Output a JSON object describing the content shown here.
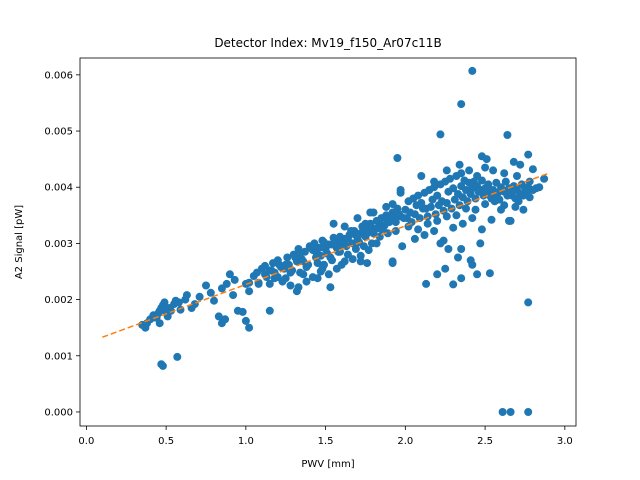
{
  "chart_data": {
    "type": "scatter",
    "title": "Detector Index: Mv19_f150_Ar07c11B",
    "xlabel": "PWV [mm]",
    "ylabel": "A2 Signal [pW]",
    "xlim": [
      -0.04,
      3.07
    ],
    "ylim": [
      -0.00025,
      0.0063
    ],
    "xticks": [
      0.0,
      0.5,
      1.0,
      1.5,
      2.0,
      2.5,
      3.0
    ],
    "xtick_labels": [
      "0.0",
      "0.5",
      "1.0",
      "1.5",
      "2.0",
      "2.5",
      "3.0"
    ],
    "yticks": [
      0.0,
      0.001,
      0.002,
      0.003,
      0.004,
      0.005,
      0.006
    ],
    "ytick_labels": [
      "0.000",
      "0.001",
      "0.002",
      "0.003",
      "0.004",
      "0.005",
      "0.006"
    ],
    "grid": false,
    "point_color": "#1f77b4",
    "fit_color": "#ff7f0e",
    "fit_line": {
      "style": "dashed",
      "x": [
        0.1,
        2.9
      ],
      "y": [
        0.00133,
        0.00425
      ]
    },
    "points": [
      [
        0.35,
        0.00155
      ],
      [
        0.37,
        0.0015
      ],
      [
        0.38,
        0.00158
      ],
      [
        0.4,
        0.00165
      ],
      [
        0.42,
        0.00172
      ],
      [
        0.44,
        0.00168
      ],
      [
        0.45,
        0.00175
      ],
      [
        0.46,
        0.0018
      ],
      [
        0.47,
        0.00185
      ],
      [
        0.48,
        0.0019
      ],
      [
        0.49,
        0.00195
      ],
      [
        0.5,
        0.00178
      ],
      [
        0.51,
        0.0017
      ],
      [
        0.52,
        0.00185
      ],
      [
        0.53,
        0.0018
      ],
      [
        0.55,
        0.00192
      ],
      [
        0.56,
        0.00198
      ],
      [
        0.58,
        0.00195
      ],
      [
        0.59,
        0.00182
      ],
      [
        0.62,
        0.002
      ],
      [
        0.63,
        0.00208
      ],
      [
        0.66,
        0.00185
      ],
      [
        0.68,
        0.00192
      ],
      [
        0.71,
        0.00205
      ],
      [
        0.47,
        0.00085
      ],
      [
        0.48,
        0.00082
      ],
      [
        0.57,
        0.00098
      ],
      [
        0.43,
        0.00168
      ],
      [
        0.46,
        0.00158
      ],
      [
        0.75,
        0.00225
      ],
      [
        0.78,
        0.00212
      ],
      [
        0.8,
        0.00198
      ],
      [
        0.83,
        0.0017
      ],
      [
        0.85,
        0.00158
      ],
      [
        0.87,
        0.00165
      ],
      [
        0.9,
        0.00245
      ],
      [
        0.92,
        0.00208
      ],
      [
        0.95,
        0.0018
      ],
      [
        0.98,
        0.00178
      ],
      [
        1.0,
        0.00162
      ],
      [
        1.02,
        0.0015
      ],
      [
        0.85,
        0.0022
      ],
      [
        0.88,
        0.00228
      ],
      [
        0.93,
        0.00235
      ],
      [
        1.0,
        0.00228
      ],
      [
        1.02,
        0.00215
      ],
      [
        1.05,
        0.00242
      ],
      [
        1.07,
        0.00248
      ],
      [
        1.08,
        0.0023
      ],
      [
        1.1,
        0.00255
      ],
      [
        1.12,
        0.0026
      ],
      [
        1.13,
        0.0024
      ],
      [
        1.15,
        0.00252
      ],
      [
        1.17,
        0.00265
      ],
      [
        1.18,
        0.00238
      ],
      [
        1.2,
        0.0027
      ],
      [
        1.22,
        0.00258
      ],
      [
        1.23,
        0.00232
      ],
      [
        1.25,
        0.00262
      ],
      [
        1.26,
        0.00275
      ],
      [
        1.28,
        0.00248
      ],
      [
        1.3,
        0.0028
      ],
      [
        1.32,
        0.00268
      ],
      [
        1.33,
        0.0029
      ],
      [
        1.35,
        0.00272
      ],
      [
        1.37,
        0.00285
      ],
      [
        1.38,
        0.00258
      ],
      [
        1.4,
        0.00295
      ],
      [
        1.42,
        0.00288
      ],
      [
        1.43,
        0.003
      ],
      [
        1.45,
        0.00265
      ],
      [
        1.47,
        0.00278
      ],
      [
        1.48,
        0.00305
      ],
      [
        1.5,
        0.0029
      ],
      [
        1.52,
        0.00298
      ],
      [
        1.53,
        0.00275
      ],
      [
        1.55,
        0.0031
      ],
      [
        1.57,
        0.00292
      ],
      [
        1.58,
        0.00285
      ],
      [
        1.6,
        0.00302
      ],
      [
        1.62,
        0.00308
      ],
      [
        1.63,
        0.00295
      ],
      [
        1.65,
        0.00315
      ],
      [
        1.67,
        0.003
      ],
      [
        1.68,
        0.00322
      ],
      [
        1.7,
        0.0031
      ],
      [
        1.72,
        0.00318
      ],
      [
        1.73,
        0.0033
      ],
      [
        1.75,
        0.00312
      ],
      [
        1.77,
        0.00325
      ],
      [
        1.78,
        0.00335
      ],
      [
        1.8,
        0.00318
      ],
      [
        1.82,
        0.0034
      ],
      [
        1.83,
        0.00328
      ],
      [
        1.85,
        0.00345
      ],
      [
        1.87,
        0.00332
      ],
      [
        1.88,
        0.0035
      ],
      [
        1.9,
        0.00338
      ],
      [
        1.92,
        0.00355
      ],
      [
        1.93,
        0.00342
      ],
      [
        1.95,
        0.00362
      ],
      [
        1.97,
        0.00348
      ],
      [
        1.08,
        0.00228
      ],
      [
        1.12,
        0.00245
      ],
      [
        1.16,
        0.00252
      ],
      [
        1.21,
        0.00262
      ],
      [
        1.24,
        0.00255
      ],
      [
        1.27,
        0.00262
      ],
      [
        1.31,
        0.00275
      ],
      [
        1.34,
        0.00282
      ],
      [
        1.36,
        0.00268
      ],
      [
        1.41,
        0.00292
      ],
      [
        1.44,
        0.00285
      ],
      [
        1.46,
        0.00292
      ],
      [
        1.49,
        0.00302
      ],
      [
        1.51,
        0.00282
      ],
      [
        1.54,
        0.00298
      ],
      [
        1.56,
        0.00302
      ],
      [
        1.59,
        0.00312
      ],
      [
        1.61,
        0.00298
      ],
      [
        1.64,
        0.00308
      ],
      [
        1.66,
        0.00322
      ],
      [
        1.69,
        0.00315
      ],
      [
        1.71,
        0.00302
      ],
      [
        1.74,
        0.00322
      ],
      [
        1.76,
        0.00318
      ],
      [
        1.79,
        0.00328
      ],
      [
        1.81,
        0.00325
      ],
      [
        1.84,
        0.00338
      ],
      [
        1.86,
        0.00328
      ],
      [
        1.89,
        0.00342
      ],
      [
        1.91,
        0.00348
      ],
      [
        1.94,
        0.00338
      ],
      [
        1.96,
        0.00352
      ],
      [
        1.99,
        0.00345
      ],
      [
        1.15,
        0.00228
      ],
      [
        1.2,
        0.0024
      ],
      [
        1.25,
        0.00238
      ],
      [
        1.29,
        0.00252
      ],
      [
        1.34,
        0.00248
      ],
      [
        1.39,
        0.00262
      ],
      [
        1.44,
        0.00275
      ],
      [
        1.49,
        0.00262
      ],
      [
        1.54,
        0.0027
      ],
      [
        1.59,
        0.00285
      ],
      [
        1.64,
        0.0028
      ],
      [
        1.69,
        0.0029
      ],
      [
        1.74,
        0.00295
      ],
      [
        1.79,
        0.003
      ],
      [
        1.84,
        0.00312
      ],
      [
        1.89,
        0.00318
      ],
      [
        1.94,
        0.00322
      ],
      [
        1.02,
        0.0023
      ],
      [
        1.28,
        0.00225
      ],
      [
        1.33,
        0.00222
      ],
      [
        1.38,
        0.00232
      ],
      [
        1.42,
        0.0024
      ],
      [
        1.47,
        0.0025
      ],
      [
        1.52,
        0.00245
      ],
      [
        1.57,
        0.00255
      ],
      [
        1.62,
        0.00268
      ],
      [
        1.67,
        0.00272
      ],
      [
        1.72,
        0.00278
      ],
      [
        1.77,
        0.00288
      ],
      [
        1.82,
        0.003
      ],
      [
        1.15,
        0.0018
      ],
      [
        1.32,
        0.00215
      ],
      [
        1.53,
        0.00222
      ],
      [
        1.58,
        0.00285
      ],
      [
        1.72,
        0.00268
      ],
      [
        1.75,
        0.00335
      ],
      [
        1.8,
        0.00355
      ],
      [
        1.85,
        0.00325
      ],
      [
        1.55,
        0.00335
      ],
      [
        1.62,
        0.0033
      ],
      [
        1.7,
        0.00345
      ],
      [
        1.78,
        0.00355
      ],
      [
        1.88,
        0.00365
      ],
      [
        1.92,
        0.0037
      ],
      [
        1.95,
        0.0035
      ],
      [
        1.97,
        0.0039
      ],
      [
        1.48,
        0.00255
      ],
      [
        1.6,
        0.00262
      ],
      [
        1.76,
        0.00265
      ],
      [
        1.92,
        0.00268
      ],
      [
        1.98,
        0.00295
      ],
      [
        1.36,
        0.00245
      ],
      [
        1.45,
        0.00238
      ],
      [
        1.18,
        0.00248
      ],
      [
        1.95,
        0.00452
      ],
      [
        1.97,
        0.00395
      ],
      [
        2.0,
        0.0036
      ],
      [
        2.02,
        0.00375
      ],
      [
        2.03,
        0.00355
      ],
      [
        2.05,
        0.0038
      ],
      [
        2.07,
        0.00368
      ],
      [
        2.08,
        0.00385
      ],
      [
        2.1,
        0.00372
      ],
      [
        2.12,
        0.0039
      ],
      [
        2.13,
        0.00362
      ],
      [
        2.15,
        0.00395
      ],
      [
        2.17,
        0.00378
      ],
      [
        2.18,
        0.004
      ],
      [
        2.2,
        0.00385
      ],
      [
        2.22,
        0.00405
      ],
      [
        2.23,
        0.00375
      ],
      [
        2.25,
        0.0041
      ],
      [
        2.27,
        0.00392
      ],
      [
        2.28,
        0.00415
      ],
      [
        2.3,
        0.00398
      ],
      [
        2.32,
        0.0042
      ],
      [
        2.33,
        0.00388
      ],
      [
        2.35,
        0.00402
      ],
      [
        2.37,
        0.00412
      ],
      [
        2.38,
        0.00395
      ],
      [
        2.4,
        0.00408
      ],
      [
        2.42,
        0.00398
      ],
      [
        2.43,
        0.0041
      ],
      [
        2.45,
        0.00402
      ],
      [
        2.47,
        0.00395
      ],
      [
        2.48,
        0.00412
      ],
      [
        2.5,
        0.00398
      ],
      [
        2.52,
        0.00405
      ],
      [
        2.53,
        0.00385
      ],
      [
        2.55,
        0.00395
      ],
      [
        2.57,
        0.00408
      ],
      [
        2.58,
        0.0039
      ],
      [
        2.6,
        0.004
      ],
      [
        2.62,
        0.00392
      ],
      [
        2.63,
        0.0041
      ],
      [
        2.65,
        0.00398
      ],
      [
        2.67,
        0.00385
      ],
      [
        2.68,
        0.00402
      ],
      [
        2.7,
        0.00395
      ],
      [
        2.72,
        0.00388
      ],
      [
        2.73,
        0.00405
      ],
      [
        2.75,
        0.00398
      ],
      [
        2.77,
        0.004
      ],
      [
        2.78,
        0.00382
      ],
      [
        2.8,
        0.00395
      ],
      [
        2.82,
        0.00398
      ],
      [
        2.87,
        0.00415
      ],
      [
        2.01,
        0.00345
      ],
      [
        2.04,
        0.00338
      ],
      [
        2.06,
        0.00352
      ],
      [
        2.09,
        0.00345
      ],
      [
        2.11,
        0.00362
      ],
      [
        2.14,
        0.00348
      ],
      [
        2.16,
        0.00365
      ],
      [
        2.19,
        0.00352
      ],
      [
        2.21,
        0.00368
      ],
      [
        2.24,
        0.00358
      ],
      [
        2.26,
        0.00372
      ],
      [
        2.29,
        0.00362
      ],
      [
        2.31,
        0.00378
      ],
      [
        2.34,
        0.00368
      ],
      [
        2.36,
        0.00382
      ],
      [
        2.39,
        0.00375
      ],
      [
        2.41,
        0.00388
      ],
      [
        2.44,
        0.0038
      ],
      [
        2.46,
        0.00392
      ],
      [
        2.49,
        0.00385
      ],
      [
        2.51,
        0.00395
      ],
      [
        2.54,
        0.0038
      ],
      [
        2.56,
        0.00388
      ],
      [
        2.59,
        0.00378
      ],
      [
        2.61,
        0.00395
      ],
      [
        2.64,
        0.00385
      ],
      [
        2.66,
        0.00392
      ],
      [
        2.69,
        0.0038
      ],
      [
        2.71,
        0.00375
      ],
      [
        2.74,
        0.00385
      ],
      [
        2.76,
        0.0039
      ],
      [
        2.02,
        0.0033
      ],
      [
        2.08,
        0.00325
      ],
      [
        2.14,
        0.00335
      ],
      [
        2.2,
        0.0034
      ],
      [
        2.26,
        0.00348
      ],
      [
        2.32,
        0.0035
      ],
      [
        2.38,
        0.00362
      ],
      [
        2.44,
        0.0036
      ],
      [
        2.5,
        0.0037
      ],
      [
        2.56,
        0.00375
      ],
      [
        2.62,
        0.00368
      ],
      [
        2.06,
        0.00308
      ],
      [
        2.12,
        0.00315
      ],
      [
        2.18,
        0.00322
      ],
      [
        2.24,
        0.00305
      ],
      [
        2.3,
        0.00328
      ],
      [
        2.36,
        0.00335
      ],
      [
        2.42,
        0.00345
      ],
      [
        2.48,
        0.00325
      ],
      [
        2.54,
        0.00342
      ],
      [
        2.22,
        0.003
      ],
      [
        2.27,
        0.0029
      ],
      [
        2.33,
        0.00275
      ],
      [
        2.35,
        0.0029
      ],
      [
        2.41,
        0.0027
      ],
      [
        2.47,
        0.003
      ],
      [
        2.6,
        0.0036
      ],
      [
        2.66,
        0.0034
      ],
      [
        2.74,
        0.0036
      ],
      [
        2.69,
        0.00365
      ],
      [
        2.1,
        0.0042
      ],
      [
        2.18,
        0.0041
      ],
      [
        2.26,
        0.0043
      ],
      [
        2.35,
        0.00425
      ],
      [
        2.45,
        0.0042
      ],
      [
        2.55,
        0.0043
      ],
      [
        2.62,
        0.00425
      ],
      [
        2.7,
        0.0042
      ],
      [
        2.78,
        0.0041
      ],
      [
        2.84,
        0.004
      ],
      [
        2.4,
        0.0043
      ],
      [
        2.5,
        0.00435
      ],
      [
        2.2,
        0.00245
      ],
      [
        2.25,
        0.00255
      ],
      [
        2.35,
        0.00238
      ],
      [
        2.45,
        0.00245
      ],
      [
        2.42,
        0.00262
      ],
      [
        2.34,
        0.0044
      ],
      [
        2.42,
        0.00607
      ],
      [
        2.35,
        0.00548
      ],
      [
        2.22,
        0.00494
      ],
      [
        2.64,
        0.00493
      ],
      [
        2.48,
        0.00455
      ],
      [
        2.51,
        0.0045
      ],
      [
        2.68,
        0.00445
      ],
      [
        2.72,
        0.0044
      ],
      [
        2.77,
        0.00458
      ],
      [
        2.8,
        0.00432
      ],
      [
        2.13,
        0.00228
      ],
      [
        2.3,
        0.00227
      ],
      [
        2.53,
        0.00247
      ],
      [
        1.92,
        0.00265
      ],
      [
        2.61,
        0.0
      ],
      [
        2.66,
        0.0
      ],
      [
        2.77,
        0.0
      ],
      [
        2.77,
        0.00195
      ],
      [
        2.65,
        0.0034
      ]
    ]
  }
}
